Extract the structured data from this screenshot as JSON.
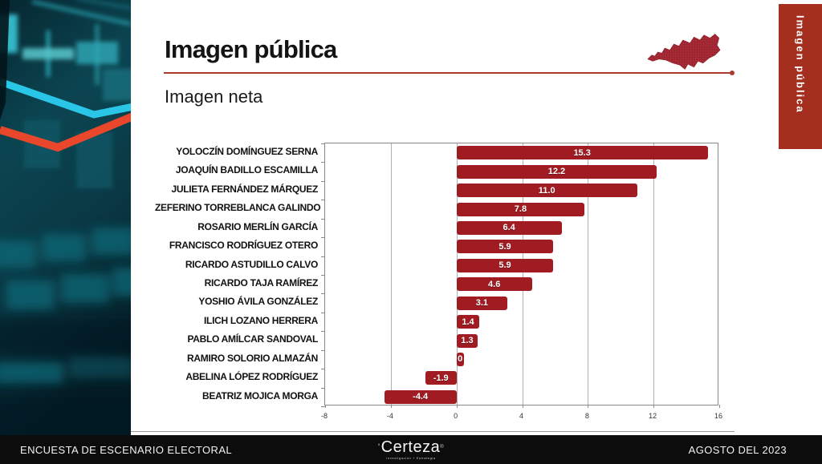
{
  "header": {
    "title": "Imagen pública",
    "subtitle": "Imagen neta"
  },
  "side_tab": {
    "label": "Imagen pública"
  },
  "icons": {
    "map": "guerrero-state-map",
    "decorative_left": "stock-market-candlestick-photo"
  },
  "colors": {
    "bar_red": "#a11c22",
    "tab_red": "#a52f1f",
    "rule_red": "#ac3a2e",
    "footer_black": "#0c0c0c",
    "band_teal": "#0a4350",
    "line_cyan": "#29c6e8",
    "line_orange": "#e8472b"
  },
  "chart_data": {
    "type": "bar",
    "orientation": "horizontal",
    "title": "Imagen neta",
    "categories": [
      "YOLOCZÍN DOMÍNGUEZ SERNA",
      "JOAQUÍN  BADILLO ESCAMILLA",
      "JULIETA FERNÁNDEZ MÁRQUEZ",
      "ZEFERINO TORREBLANCA GALINDO",
      "ROSARIO MERLÍN GARCÍA",
      "FRANCISCO  RODRÍGUEZ OTERO",
      "RICARDO ASTUDILLO CALVO",
      "RICARDO TAJA RAMÍREZ",
      "YOSHIO ÁVILA GONZÁLEZ",
      "ILICH LOZANO HERRERA",
      "PABLO AMÍLCAR SANDOVAL",
      "RAMIRO SOLORIO ALMAZÁN",
      "ABELINA LÓPEZ RODRÍGUEZ",
      "BEATRIZ MOJICA MORGA"
    ],
    "values": [
      15.3,
      12.2,
      11.0,
      7.8,
      6.4,
      5.9,
      5.9,
      4.6,
      3.1,
      1.4,
      1.3,
      0,
      -1.9,
      -4.4
    ],
    "value_labels": [
      "15.3",
      "12.2",
      "11.0",
      "7.8",
      "6.4",
      "5.9",
      "5.9",
      "4.6",
      "3.1",
      "1.4",
      "1.3",
      "0",
      "-1.9",
      "-4.4"
    ],
    "xlim": [
      -8,
      16
    ],
    "x_ticks": [
      -8,
      -4,
      0,
      4,
      8,
      12,
      16
    ],
    "grid": true,
    "bar_color": "#a11c22",
    "legend": null
  },
  "footer": {
    "left": "ENCUESTA DE ESCENARIO ELECTORAL",
    "brand": "Certeza",
    "brand_reg": "®",
    "brand_tick": "'",
    "tagline": "Investigación + Estrategia",
    "right": "AGOSTO DEL 2023"
  }
}
